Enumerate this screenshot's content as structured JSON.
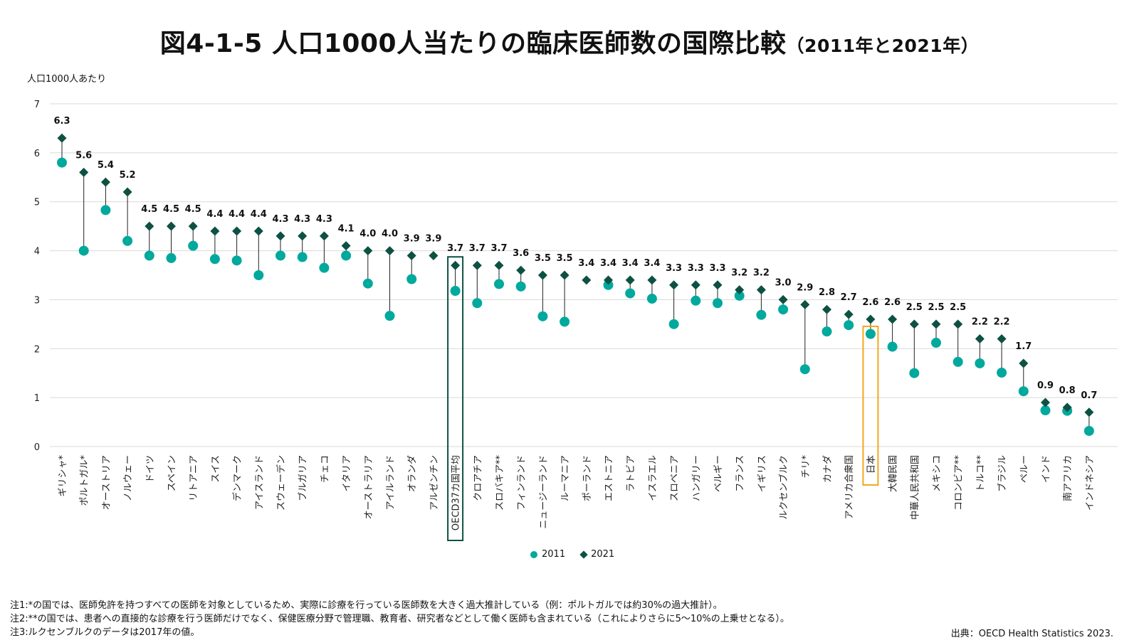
{
  "title": "図4-1-5 人口1000人当たりの臨床医師数の国際比較",
  "subtitle": "（2011年と2021年）",
  "unit_label": "人口1000人あたり",
  "legend": {
    "s2011": "2011",
    "s2021": "2021"
  },
  "notes": [
    "注1:*の国では、医師免許を持つすべての医師を対象としているため、実際に診療を行っている医師数を大きく過大推計している（例：ポルトガルでは約30%の過大推計）。",
    "注2:**の国では、患者への直接的な診療を行う医師だけでなく、保健医療分野で管理職、教育者、研究者などとして働く医師も含まれている（これによりさらに5〜10%の上乗せとなる）。",
    "注3:ルクセンブルクのデータは2017年の値。"
  ],
  "source": "出典：OECD Health Statistics 2023.",
  "colors": {
    "s2011": "#00a99d",
    "s2021": "#0d5142",
    "highlight_oecd": "#0d5142",
    "highlight_japan": "#f2a91c",
    "grid": "#d9d9d9"
  },
  "chart_data": {
    "type": "dot-plot",
    "ylim": [
      0,
      7
    ],
    "yticks": [
      0,
      1,
      2,
      3,
      4,
      5,
      6,
      7
    ],
    "grid": true,
    "legend_position": "bottom",
    "categories": [
      "ギリシャ*",
      "ポルトガル*",
      "オーストリア",
      "ノルウェー",
      "ドイツ",
      "スペイン",
      "リトアニア",
      "スイス",
      "デンマーク",
      "アイスランド",
      "スウェーデン",
      "ブルガリア",
      "チェコ",
      "イタリア",
      "オーストラリア",
      "アイルランド",
      "オランダ",
      "アルゼンチン",
      "OECD37カ国平均",
      "クロアチア",
      "スロバキア**",
      "フィンランド",
      "ニュージーランド",
      "ルーマニア",
      "ポーランド",
      "エストニア",
      "ラトビア",
      "イスラエル",
      "スロベニア",
      "ハンガリー",
      "ベルギー",
      "フランス",
      "イギリス",
      "ルクセンブルク",
      "チリ*",
      "カナダ",
      "アメリカ合衆国",
      "日本",
      "大韓民国",
      "中華人民共和国",
      "メキシコ",
      "コロンビア**",
      "トルコ**",
      "ブラジル",
      "ペルー",
      "インド",
      "南アフリカ",
      "インドネシア"
    ],
    "series": [
      {
        "name": "2011",
        "values": [
          5.8,
          4.0,
          4.83,
          4.2,
          3.9,
          3.85,
          4.1,
          3.83,
          3.8,
          3.5,
          3.9,
          3.87,
          3.65,
          3.9,
          3.33,
          2.67,
          3.42,
          null,
          3.18,
          2.93,
          3.32,
          3.27,
          2.66,
          2.55,
          null,
          3.3,
          3.13,
          3.02,
          2.5,
          2.98,
          2.93,
          3.08,
          2.69,
          2.8,
          1.58,
          2.35,
          2.48,
          2.3,
          2.04,
          1.5,
          2.12,
          1.73,
          1.7,
          1.51,
          1.13,
          0.74,
          0.73,
          0.32
        ]
      },
      {
        "name": "2021",
        "values": [
          6.3,
          5.6,
          5.4,
          5.2,
          4.5,
          4.5,
          4.5,
          4.4,
          4.4,
          4.4,
          4.3,
          4.3,
          4.3,
          4.1,
          4.0,
          4.0,
          3.9,
          3.9,
          3.7,
          3.7,
          3.7,
          3.6,
          3.5,
          3.5,
          3.4,
          3.4,
          3.4,
          3.4,
          3.3,
          3.3,
          3.3,
          3.2,
          3.2,
          3.0,
          2.9,
          2.8,
          2.7,
          2.6,
          2.6,
          2.5,
          2.5,
          2.5,
          2.2,
          2.2,
          1.7,
          0.9,
          0.8,
          0.7
        ]
      }
    ],
    "highlight": [
      "OECD37カ国平均",
      "日本"
    ]
  }
}
